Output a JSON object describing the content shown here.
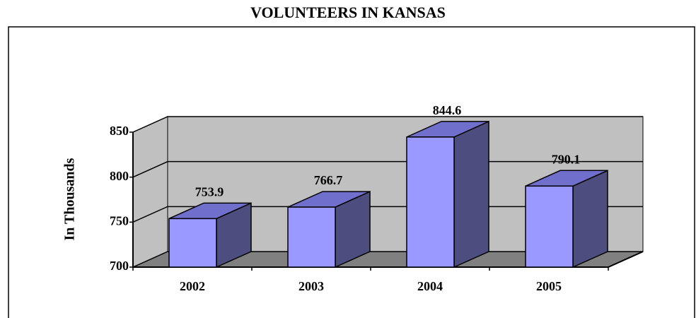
{
  "chart_data": {
    "type": "bar",
    "title": "VOLUNTEERS IN KANSAS",
    "y_label": "In Thousands",
    "categories": [
      "2002",
      "2003",
      "2004",
      "2005"
    ],
    "values": [
      753.9,
      766.7,
      844.6,
      790.1
    ],
    "color": "#9999ff",
    "ylim": [
      700,
      850
    ],
    "yticks": [
      700,
      750,
      800,
      850
    ],
    "grid": true
  }
}
